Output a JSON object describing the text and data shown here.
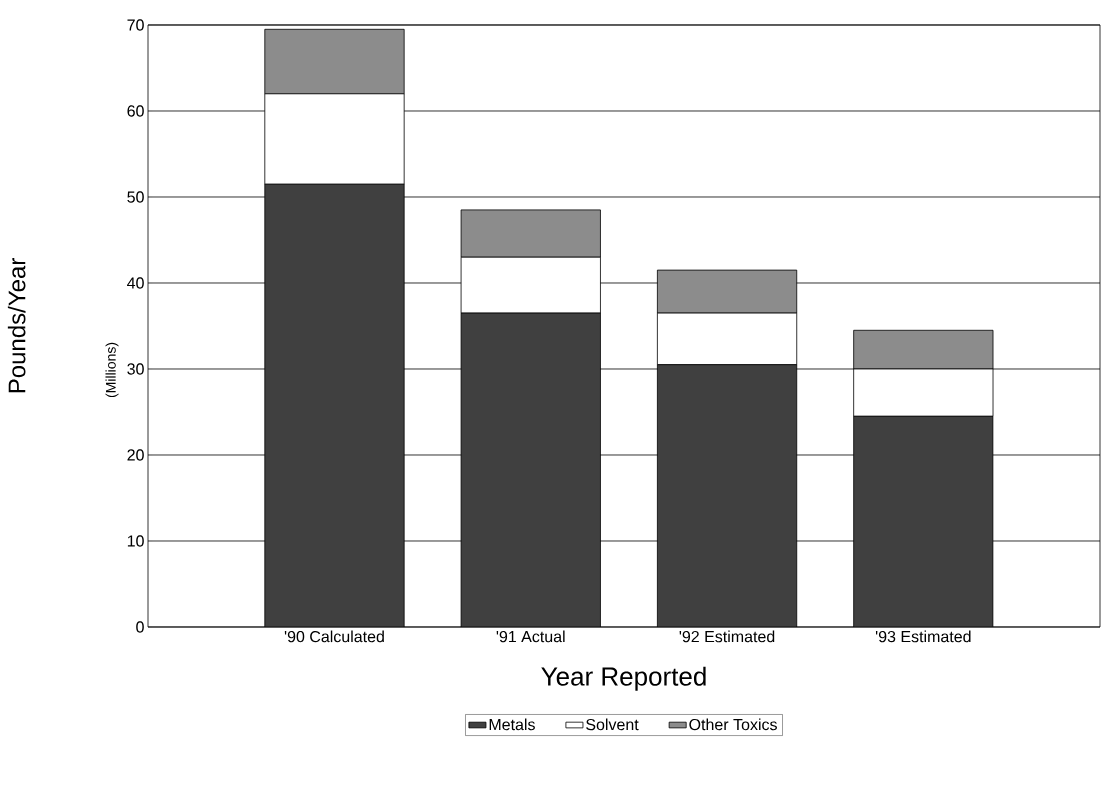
{
  "chart_data": {
    "type": "bar",
    "stacked": true,
    "xlabel": "Year Reported",
    "ylabel": "Pounds/Year",
    "annotations": [
      "(Millions)"
    ],
    "categories": [
      "'90 Calculated",
      "'91 Actual",
      "'92 Estimated",
      "'93 Estimated"
    ],
    "series": [
      {
        "name": "Metals",
        "color": "#404040",
        "values": [
          51.5,
          36.5,
          30.5,
          24.5
        ]
      },
      {
        "name": "Solvent",
        "color": "#ffffff",
        "values": [
          10.5,
          6.5,
          6,
          5.5
        ]
      },
      {
        "name": "Other Toxics",
        "color": "#8c8c8c",
        "values": [
          7.5,
          5.5,
          5,
          4.5
        ]
      }
    ],
    "ylim": [
      0,
      70
    ],
    "yticks": [
      0,
      10,
      20,
      30,
      40,
      50,
      60,
      70
    ],
    "grid": "y",
    "legend": "bottom"
  }
}
